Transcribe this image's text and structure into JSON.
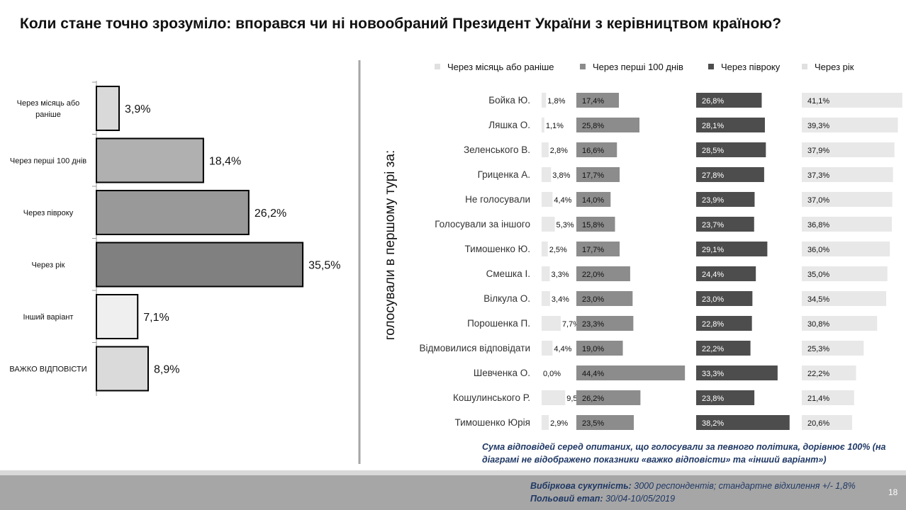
{
  "title": "Коли стане точно зрозуміло: впорався чи ні новообраний Президент України з керівництвом країною?",
  "chart_data": [
    {
      "type": "bar",
      "orientation": "horizontal",
      "categories": [
        "Через місяць або раніше",
        "Через перші 100 днів",
        "Через півроку",
        "Через рік",
        "Інший варіант",
        "ВАЖКО ВІДПОВІСТИ"
      ],
      "values": [
        3.9,
        18.4,
        26.2,
        35.5,
        7.1,
        8.9
      ],
      "value_labels": [
        "3,9%",
        "18,4%",
        "26,2%",
        "35,5%",
        "7,1%",
        "8,9%"
      ],
      "colors": [
        "#d9d9d9",
        "#b0b0b0",
        "#999999",
        "#808080",
        "#efefef",
        "#dadada"
      ],
      "xlim": [
        0,
        40
      ],
      "grid": false
    },
    {
      "type": "bar",
      "orientation": "horizontal",
      "layout": "small-multiples",
      "ylabel": "голосували в першому турі за:",
      "legend_position": "top",
      "categories": [
        "Бойка Ю.",
        "Ляшка О.",
        "Зеленського В.",
        "Гриценка А.",
        "Не голосували",
        "Голосували за іншого",
        "Тимошенко Ю.",
        "Смешка І.",
        "Вілкула О.",
        "Порошенка П.",
        "Відмовилися відповідати",
        "Шевченка О.",
        "Кошулинського Р.",
        "Тимошенко Юрія"
      ],
      "series": [
        {
          "name": "Через місяць або раніше",
          "color": "#e8e8e8",
          "values": [
            1.8,
            1.1,
            2.8,
            3.8,
            4.4,
            5.3,
            2.5,
            3.3,
            3.4,
            7.7,
            4.4,
            0.0,
            9.5,
            2.9
          ],
          "labels": [
            "1,8%",
            "1,1%",
            "2,8%",
            "3,8%",
            "4,4%",
            "5,3%",
            "2,5%",
            "3,3%",
            "3,4%",
            "7,7%",
            "4,4%",
            "0,0%",
            "9,5%",
            "2,9%"
          ]
        },
        {
          "name": "Через перші 100 днів",
          "color": "#8c8c8c",
          "values": [
            17.4,
            25.8,
            16.6,
            17.7,
            14.0,
            15.8,
            17.7,
            22.0,
            23.0,
            23.3,
            19.0,
            44.4,
            26.2,
            23.5
          ],
          "labels": [
            "17,4%",
            "25,8%",
            "16,6%",
            "17,7%",
            "14,0%",
            "15,8%",
            "17,7%",
            "22,0%",
            "23,0%",
            "23,3%",
            "19,0%",
            "44,4%",
            "26,2%",
            "23,5%"
          ]
        },
        {
          "name": "Через півроку",
          "color": "#4d4d4d",
          "values": [
            26.8,
            28.1,
            28.5,
            27.8,
            23.9,
            23.7,
            29.1,
            24.4,
            23.0,
            22.8,
            22.2,
            33.3,
            23.8,
            38.2
          ],
          "labels": [
            "26,8%",
            "28,1%",
            "28,5%",
            "27,8%",
            "23,9%",
            "23,7%",
            "29,1%",
            "24,4%",
            "23,0%",
            "22,8%",
            "22,2%",
            "33,3%",
            "23,8%",
            "38,2%"
          ]
        },
        {
          "name": "Через рік",
          "color": "#e8e8e8",
          "values": [
            41.1,
            39.3,
            37.9,
            37.3,
            37.0,
            36.8,
            36.0,
            35.0,
            34.5,
            30.8,
            25.3,
            22.2,
            21.4,
            20.6
          ],
          "labels": [
            "41,1%",
            "39,3%",
            "37,9%",
            "37,3%",
            "37,0%",
            "36,8%",
            "36,0%",
            "35,0%",
            "34,5%",
            "30,8%",
            "25,3%",
            "22,2%",
            "21,4%",
            "20,6%"
          ]
        }
      ]
    }
  ],
  "note": "Сума відповідей серед опитаних, що голосували за певного політика,   дорівнює 100% (на діаграмі не відображено показники «важко відповісти» та  «інший варіант»)",
  "footer": {
    "sample_label": "Вибіркова сукупність:",
    "sample_value": "3000  респондентів; стандартне  відхилення +/- 1,8%",
    "field_label": "Польовий етап:",
    "field_value": "30/04-10/05/2019"
  },
  "page_number": "18"
}
